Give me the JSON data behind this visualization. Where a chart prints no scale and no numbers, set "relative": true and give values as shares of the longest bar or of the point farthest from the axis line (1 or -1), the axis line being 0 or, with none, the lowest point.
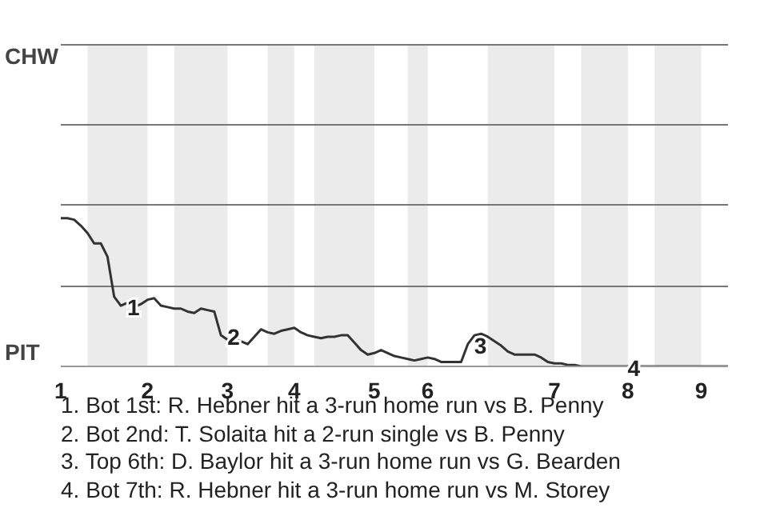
{
  "chart_data": {
    "type": "line",
    "relative": true,
    "categories": [
      "1",
      null,
      null,
      null,
      null,
      null,
      null,
      null,
      null,
      null,
      null,
      null,
      null,
      "2",
      null,
      null,
      null,
      null,
      null,
      null,
      null,
      null,
      null,
      null,
      null,
      "3",
      null,
      null,
      null,
      null,
      null,
      null,
      null,
      null,
      null,
      "4",
      null,
      null,
      null,
      null,
      null,
      null,
      null,
      null,
      null,
      null,
      null,
      "5",
      null,
      null,
      null,
      null,
      null,
      null,
      null,
      "6",
      null,
      null,
      null,
      null,
      null,
      null,
      null,
      null,
      null,
      null,
      null,
      null,
      null,
      null,
      null,
      null,
      null,
      null,
      "7",
      null,
      null,
      null,
      null,
      null,
      null,
      null,
      null,
      null,
      null,
      "8",
      null,
      null,
      null,
      null,
      null,
      null,
      null,
      null,
      null,
      null,
      "9",
      null,
      null,
      null,
      null
    ],
    "series": [
      {
        "color": "#333333",
        "values": [
          1,
          1,
          0.99,
          0.95,
          0.9,
          0.83,
          0.83,
          0.74,
          0.47,
          0.41,
          0.43,
          0.4,
          0.42,
          0.45,
          0.46,
          0.41,
          0.4,
          0.39,
          0.39,
          0.37,
          0.36,
          0.39,
          0.38,
          0.37,
          0.21,
          0.18,
          0.18,
          0.17,
          0.15,
          0.2,
          0.25,
          0.23,
          0.22,
          0.24,
          0.25,
          0.26,
          0.23,
          0.21,
          0.2,
          0.19,
          0.2,
          0.2,
          0.21,
          0.21,
          0.16,
          0.11,
          0.08,
          0.09,
          0.11,
          0.09,
          0.07,
          0.06,
          0.05,
          0.04,
          0.05,
          0.06,
          0.05,
          0.03,
          0.03,
          0.03,
          0.03,
          0.15,
          0.21,
          0.22,
          0.2,
          0.17,
          0.14,
          0.1,
          0.08,
          0.08,
          0.08,
          0.08,
          0.06,
          0.03,
          0.02,
          0.02,
          0.01,
          0.01,
          0,
          0,
          0,
          0,
          0,
          0,
          0,
          0,
          0,
          0,
          0,
          0,
          0,
          0,
          0,
          0,
          0,
          0,
          0,
          0,
          0,
          0,
          0
        ]
      }
    ],
    "ref_lines": [
      {
        "axis": "y",
        "value": 0.54,
        "color": "#777777"
      },
      {
        "axis": "y",
        "value": 1.09,
        "color": "#777777"
      },
      {
        "axis": "y",
        "value": 1.63,
        "color": "#777777"
      },
      {
        "axis": "y",
        "value": 2.17,
        "color": "#777777"
      }
    ],
    "line_style": "solid",
    "annotations": [
      "CHW",
      "PIT",
      "1",
      "2",
      "3",
      "4",
      "1. Bot 1st: R. Hebner hit a 3-run home run vs B. Penny",
      "2. Bot 2nd: T. Solaita hit a 2-run single vs B. Penny",
      "3. Top 6th: D. Baylor hit a 3-run home run vs G. Bearden",
      "4. Bot 7th: R. Hebner hit a 3-run home run vs M. Storey"
    ]
  }
}
